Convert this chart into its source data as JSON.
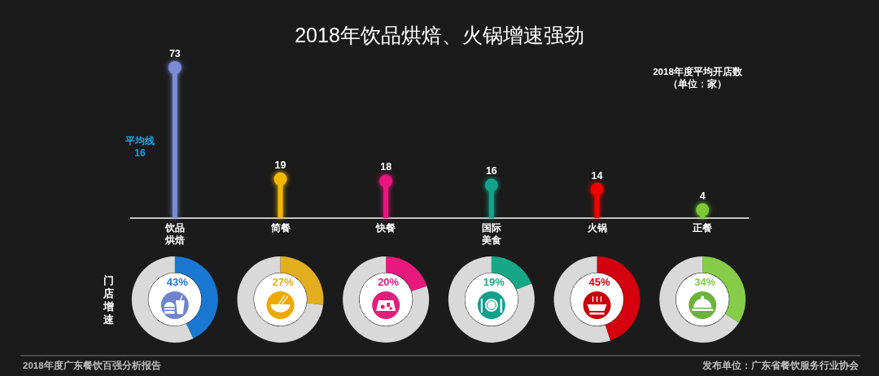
{
  "chart_data": [
    {
      "type": "lollipop",
      "title": "2018年饮品烘焙、火锅增速强劲",
      "ylabel": "2018年度平均开店数（单位：家）",
      "categories": [
        "饮品烘焙",
        "简餐",
        "快餐",
        "国际美食",
        "火锅",
        "正餐"
      ],
      "values": [
        73,
        19,
        18,
        16,
        14,
        4
      ],
      "colors": [
        "#7b8cd4",
        "#f5b800",
        "#e8177f",
        "#12a38c",
        "#f00000",
        "#7cc835"
      ],
      "data_labels": true,
      "annotations": [
        "平均线16",
        "2018年度广东餐饮百强分析报告",
        "发布单位：广东省餐饮服务行业协会"
      ]
    },
    {
      "type": "donut",
      "ylabel": "门店增速",
      "categories": [
        null,
        null
      ],
      "values": [
        43,
        57
      ],
      "colors": [
        "#1a78d2",
        "#d9d9d9"
      ],
      "value_labels": [
        "43%",
        null
      ]
    },
    {
      "type": "donut",
      "categories": [
        null,
        null
      ],
      "values": [
        27,
        73
      ],
      "colors": [
        "#e2ad1e",
        "#d9d9d9"
      ],
      "value_labels": [
        "27%",
        null
      ]
    },
    {
      "type": "donut",
      "categories": [
        null,
        null
      ],
      "values": [
        20,
        80
      ],
      "colors": [
        "#e8197d",
        "#d9d9d9"
      ],
      "value_labels": [
        "20%",
        null
      ]
    },
    {
      "type": "donut",
      "categories": [
        null,
        null
      ],
      "values": [
        19,
        81
      ],
      "colors": [
        "#16a886",
        "#d9d9d9"
      ],
      "value_labels": [
        "19%",
        null
      ]
    },
    {
      "type": "donut",
      "categories": [
        null,
        null
      ],
      "values": [
        45,
        55
      ],
      "colors": [
        "#d4000d",
        "#d9d9d9"
      ],
      "value_labels": [
        "45%",
        null
      ]
    },
    {
      "type": "donut",
      "categories": [
        null,
        null
      ],
      "values": [
        34,
        66
      ],
      "colors": [
        "#86cc48",
        "#d9d9d9"
      ],
      "value_labels": [
        "34%",
        null
      ]
    }
  ]
}
